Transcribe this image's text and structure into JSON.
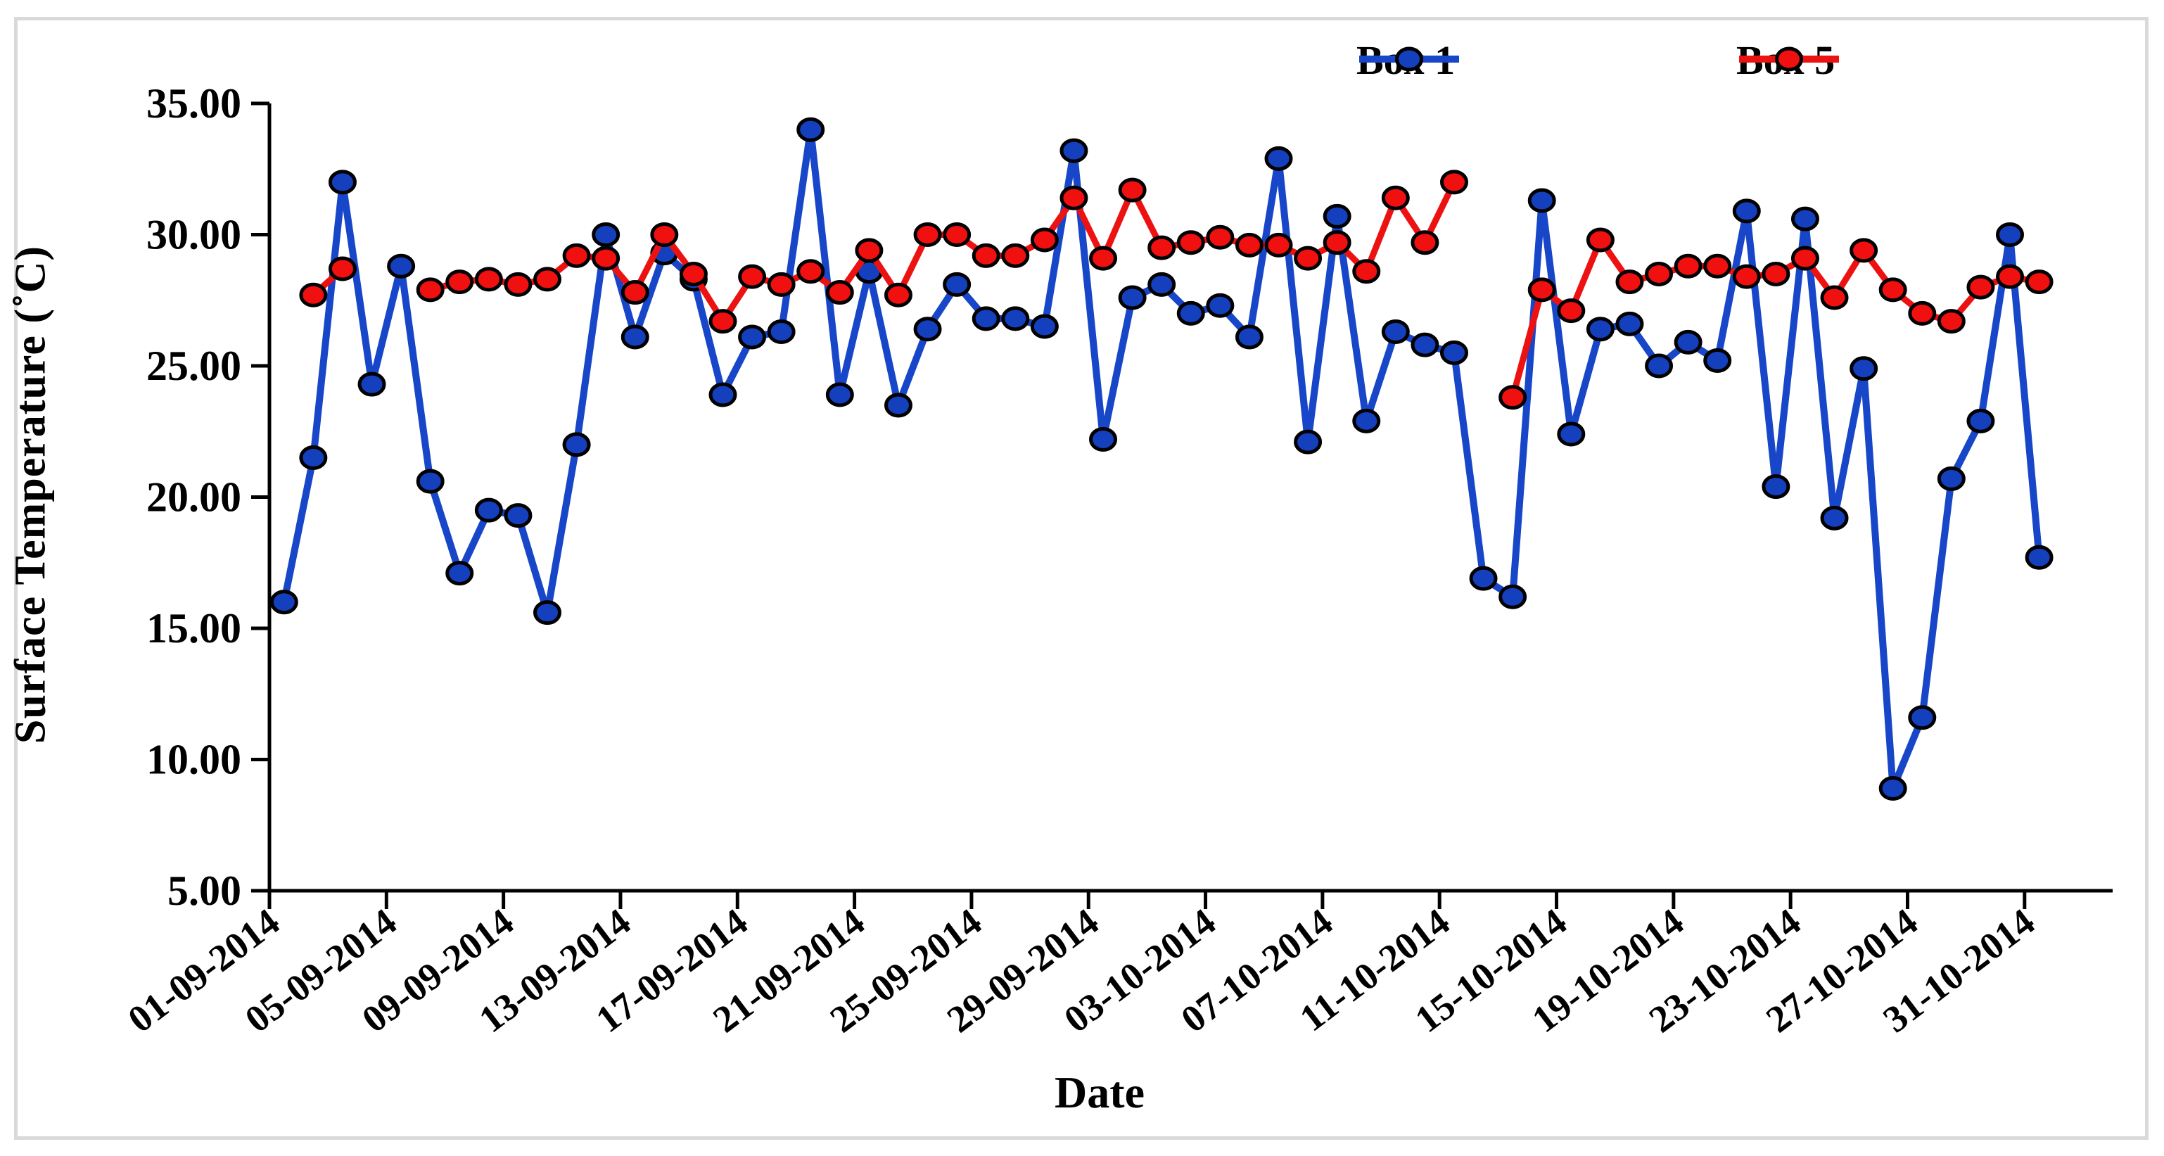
{
  "chart_data": {
    "type": "line",
    "title": "",
    "xlabel": "Date",
    "ylabel": "Surface Temperature (˚C)",
    "ylim": [
      5,
      35
    ],
    "ytick_step": 5,
    "ytick_labels": [
      "35.00",
      "30.00",
      "25.00",
      "20.00",
      "15.00",
      "10.00",
      "5.00"
    ],
    "grid": false,
    "legend_position": "top-right",
    "xtick_every": 4,
    "xtick_labels": [
      "01-09-2014",
      "05-09-2014",
      "09-09-2014",
      "13-09-2014",
      "17-09-2014",
      "21-09-2014",
      "25-09-2014",
      "29-09-2014",
      "03-10-2014",
      "07-10-2014",
      "11-10-2014",
      "15-10-2014",
      "19-10-2014",
      "23-10-2014",
      "27-10-2014",
      "31-10-2014"
    ],
    "x_dates": [
      "01-09-2014",
      "02-09-2014",
      "03-09-2014",
      "04-09-2014",
      "05-09-2014",
      "06-09-2014",
      "07-09-2014",
      "08-09-2014",
      "09-09-2014",
      "10-09-2014",
      "11-09-2014",
      "12-09-2014",
      "13-09-2014",
      "14-09-2014",
      "15-09-2014",
      "16-09-2014",
      "17-09-2014",
      "18-09-2014",
      "19-09-2014",
      "20-09-2014",
      "21-09-2014",
      "22-09-2014",
      "23-09-2014",
      "24-09-2014",
      "25-09-2014",
      "26-09-2014",
      "27-09-2014",
      "28-09-2014",
      "29-09-2014",
      "30-09-2014",
      "01-10-2014",
      "02-10-2014",
      "03-10-2014",
      "04-10-2014",
      "05-10-2014",
      "06-10-2014",
      "07-10-2014",
      "08-10-2014",
      "09-10-2014",
      "10-10-2014",
      "11-10-2014",
      "12-10-2014",
      "13-10-2014",
      "14-10-2014",
      "15-10-2014",
      "16-10-2014",
      "17-10-2014",
      "18-10-2014",
      "19-10-2014",
      "20-10-2014",
      "21-10-2014",
      "22-10-2014",
      "23-10-2014",
      "24-10-2014",
      "25-10-2014",
      "26-10-2014",
      "27-10-2014",
      "28-10-2014",
      "29-10-2014",
      "30-10-2014",
      "31-10-2014"
    ],
    "series": [
      {
        "name": "Box 1",
        "color": "#1746C8",
        "marker_fill": "#1440BE",
        "values": [
          16.0,
          21.5,
          32.0,
          24.3,
          28.8,
          20.6,
          17.1,
          19.5,
          19.3,
          15.6,
          22.0,
          30.0,
          26.1,
          29.3,
          28.3,
          23.9,
          26.1,
          26.3,
          34.0,
          23.9,
          28.6,
          23.5,
          26.4,
          28.1,
          26.8,
          26.8,
          26.5,
          33.2,
          22.2,
          27.6,
          28.1,
          27.0,
          27.3,
          26.1,
          32.9,
          22.1,
          30.7,
          22.9,
          26.3,
          25.8,
          25.5,
          16.9,
          16.2,
          31.3,
          22.4,
          26.4,
          26.6,
          25.0,
          25.9,
          25.2,
          30.9,
          20.4,
          30.6,
          19.2,
          24.9,
          8.9,
          11.6,
          20.7,
          22.9,
          30.0,
          17.7
        ]
      },
      {
        "name": "Box 5",
        "color": "#ED1212",
        "marker_fill": "#F01010",
        "values": [
          null,
          27.7,
          28.7,
          null,
          null,
          27.9,
          28.2,
          28.3,
          28.1,
          28.3,
          29.2,
          29.1,
          27.8,
          30.0,
          28.5,
          26.7,
          28.4,
          28.1,
          28.6,
          27.8,
          29.4,
          27.7,
          30.0,
          30.0,
          29.2,
          29.2,
          29.8,
          31.4,
          29.1,
          31.7,
          29.5,
          29.7,
          29.9,
          29.6,
          29.6,
          29.1,
          29.7,
          28.6,
          31.4,
          29.7,
          32.0,
          null,
          23.8,
          27.9,
          27.1,
          29.8,
          28.2,
          28.5,
          28.8,
          28.8,
          28.4,
          28.5,
          29.1,
          27.6,
          29.4,
          27.9,
          27.0,
          26.7,
          28.0,
          28.4,
          28.2
        ]
      }
    ]
  },
  "legend": {
    "box1_label": "Box 1",
    "box5_label": "Box 5"
  },
  "axes": {
    "y_title": "Surface Temperature (˚C)",
    "x_title": "Date"
  },
  "colors": {
    "box1": "#1746C8",
    "box5": "#ED1212",
    "axis": "#000000",
    "frame_border": "#d9d9d9",
    "background": "#ffffff"
  }
}
